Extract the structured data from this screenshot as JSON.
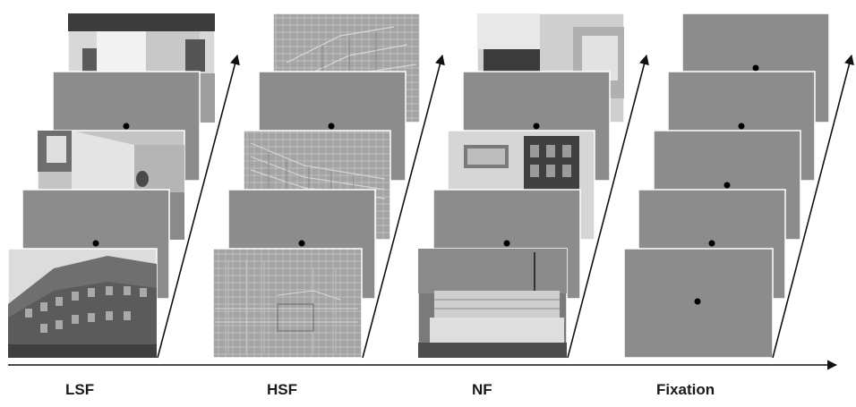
{
  "conditions": [
    {
      "key": "lsf",
      "label": "LSF"
    },
    {
      "key": "hsf",
      "label": "HSF"
    },
    {
      "key": "nf",
      "label": "NF"
    },
    {
      "key": "fixation",
      "label": "Fixation"
    }
  ],
  "colors": {
    "grey_screen": "#8c8c8c",
    "fixation_dot": "#000000",
    "axis": "#111111"
  },
  "icons": {
    "time_axis": "arrow-right-icon",
    "sequence_arrow": "diagonal-arrow-icon"
  }
}
